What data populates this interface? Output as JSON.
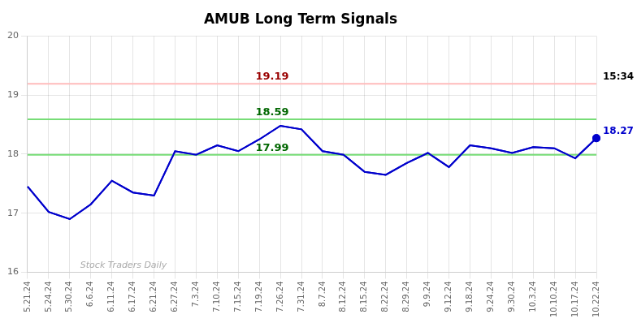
{
  "chart_data": {
    "type": "line",
    "title": "AMUB Long Term Signals",
    "categories": [
      "5.21.24",
      "5.24.24",
      "5.30.24",
      "6.6.24",
      "6.11.24",
      "6.17.24",
      "6.21.24",
      "6.27.24",
      "7.3.24",
      "7.10.24",
      "7.15.24",
      "7.19.24",
      "7.26.24",
      "7.31.24",
      "8.7.24",
      "8.12.24",
      "8.15.24",
      "8.22.24",
      "8.29.24",
      "9.9.24",
      "9.12.24",
      "9.18.24",
      "9.24.24",
      "9.30.24",
      "10.3.24",
      "10.10.24",
      "10.17.24",
      "10.22.24"
    ],
    "values": [
      17.45,
      17.02,
      16.9,
      17.15,
      17.55,
      17.35,
      17.3,
      18.05,
      17.99,
      18.15,
      18.05,
      18.25,
      18.48,
      18.42,
      18.05,
      17.99,
      17.7,
      17.65,
      17.85,
      18.02,
      17.78,
      18.15,
      18.1,
      18.02,
      18.12,
      18.1,
      17.93,
      18.27
    ],
    "color": "#0000cc",
    "hlines": [
      {
        "value": 19.19,
        "color": "#ffbbbb",
        "label": "19.19",
        "label_color": "#990000"
      },
      {
        "value": 18.59,
        "color": "#77dd77",
        "label": "18.59",
        "label_color": "#006600"
      },
      {
        "value": 17.99,
        "color": "#77dd77",
        "label": "17.99",
        "label_color": "#006600"
      }
    ],
    "annotations": [
      {
        "text": "15:34",
        "y": 19.19,
        "color": "#000000"
      },
      {
        "text": "18.27",
        "y": 18.27,
        "color": "#0000cc"
      }
    ],
    "watermark": {
      "text": "Stock Traders Daily",
      "color": "#aaaaaa"
    },
    "ylim": [
      16,
      20
    ],
    "yticks": [
      16,
      17,
      18,
      19,
      20
    ],
    "grid": true
  }
}
